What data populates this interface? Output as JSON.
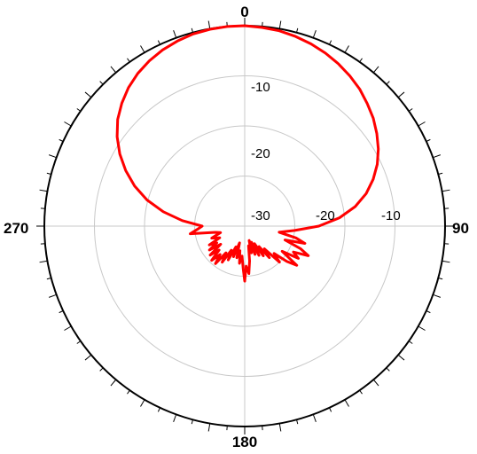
{
  "chart_data": {
    "type": "polar-line",
    "title": "",
    "angle_labels": [
      {
        "angle": 0,
        "text": "0"
      },
      {
        "angle": 90,
        "text": "90"
      },
      {
        "angle": 180,
        "text": "180"
      },
      {
        "angle": 270,
        "text": "270"
      }
    ],
    "radial_labels": [
      "-10",
      "-20",
      "-30"
    ],
    "radial_range": [
      -40,
      0
    ],
    "radial_rings": [
      -10,
      -20,
      -30
    ],
    "angular_tick_step_deg": 5,
    "colors": {
      "series": "#ff0000",
      "grid": "#c8c8c8",
      "axis": "#000000"
    },
    "series": [
      {
        "points": [
          [
            0,
            0
          ],
          [
            5,
            -0.2
          ],
          [
            10,
            -0.4
          ],
          [
            15,
            -0.8
          ],
          [
            20,
            -1.3
          ],
          [
            25,
            -1.9
          ],
          [
            30,
            -2.6
          ],
          [
            35,
            -3.4
          ],
          [
            40,
            -4.3
          ],
          [
            45,
            -5.4
          ],
          [
            50,
            -6.5
          ],
          [
            55,
            -7.8
          ],
          [
            60,
            -9.2
          ],
          [
            65,
            -10.8
          ],
          [
            70,
            -12.7
          ],
          [
            75,
            -14.9
          ],
          [
            80,
            -17.6
          ],
          [
            85,
            -21.0
          ],
          [
            90,
            -25.2
          ],
          [
            95,
            -30.0
          ],
          [
            100,
            -33.0
          ],
          [
            103,
            -29.5
          ],
          [
            106,
            -27.5
          ],
          [
            109,
            -31.5
          ],
          [
            112,
            -28.0
          ],
          [
            115,
            -26.0
          ],
          [
            118,
            -29.0
          ],
          [
            121,
            -27.5
          ],
          [
            124,
            -31.0
          ],
          [
            127,
            -27.0
          ],
          [
            130,
            -29.0
          ],
          [
            133,
            -32.0
          ],
          [
            136,
            -30.0
          ],
          [
            139,
            -34.0
          ],
          [
            142,
            -32.0
          ],
          [
            145,
            -35.0
          ],
          [
            148,
            -33.0
          ],
          [
            151,
            -36.0
          ],
          [
            154,
            -33.5
          ],
          [
            157,
            -36.5
          ],
          [
            160,
            -34.0
          ],
          [
            163,
            -37.0
          ],
          [
            166,
            -34.5
          ],
          [
            169,
            -36.0
          ],
          [
            172,
            -33.0
          ],
          [
            175,
            -30.5
          ],
          [
            178,
            -32.0
          ],
          [
            180,
            -29.0
          ],
          [
            182,
            -31.5
          ],
          [
            185,
            -34.0
          ],
          [
            188,
            -32.5
          ],
          [
            191,
            -35.0
          ],
          [
            194,
            -33.5
          ],
          [
            197,
            -36.5
          ],
          [
            200,
            -33.5
          ],
          [
            203,
            -35.5
          ],
          [
            206,
            -32.5
          ],
          [
            209,
            -34.5
          ],
          [
            212,
            -31.5
          ],
          [
            215,
            -33.5
          ],
          [
            218,
            -30.5
          ],
          [
            221,
            -32.5
          ],
          [
            224,
            -30.5
          ],
          [
            227,
            -33.0
          ],
          [
            230,
            -31.0
          ],
          [
            233,
            -34.0
          ],
          [
            236,
            -31.5
          ],
          [
            239,
            -33.5
          ],
          [
            242,
            -32.0
          ],
          [
            245,
            -34.5
          ],
          [
            250,
            -33.0
          ],
          [
            255,
            -35.0
          ],
          [
            258,
            -34.0
          ],
          [
            262,
            -29.0
          ],
          [
            266,
            -30.5
          ],
          [
            270,
            -31.5
          ],
          [
            275,
            -27.5
          ],
          [
            280,
            -23.5
          ],
          [
            285,
            -19.8
          ],
          [
            290,
            -16.6
          ],
          [
            295,
            -13.8
          ],
          [
            300,
            -11.2
          ],
          [
            305,
            -8.9
          ],
          [
            310,
            -6.9
          ],
          [
            315,
            -5.3
          ],
          [
            320,
            -3.9
          ],
          [
            325,
            -2.8
          ],
          [
            330,
            -1.9
          ],
          [
            335,
            -1.2
          ],
          [
            340,
            -0.7
          ],
          [
            345,
            -0.3
          ],
          [
            350,
            -0.1
          ],
          [
            355,
            0
          ],
          [
            360,
            0
          ]
        ]
      }
    ]
  }
}
